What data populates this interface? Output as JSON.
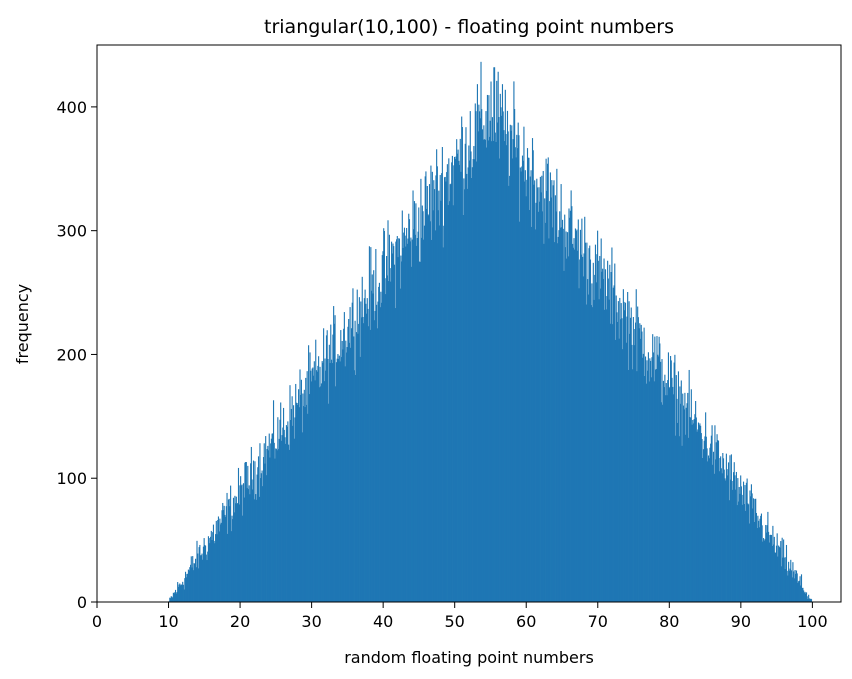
{
  "chart_data": {
    "type": "bar",
    "title": "triangular(10,100) - floating point numbers",
    "xlabel": "random floating point numbers",
    "ylabel": "frequency",
    "xlim": [
      0,
      104
    ],
    "ylim": [
      0,
      450
    ],
    "xticks": [
      0,
      10,
      20,
      30,
      40,
      50,
      60,
      70,
      80,
      90,
      100
    ],
    "yticks": [
      0,
      100,
      200,
      300,
      400
    ],
    "grid": false,
    "bar_color": "#1f77b4",
    "distribution": {
      "low": 10,
      "high": 100,
      "mode": 55
    },
    "bin_width": 0.1,
    "peak_value": 432,
    "peak_x": 55.5
  }
}
